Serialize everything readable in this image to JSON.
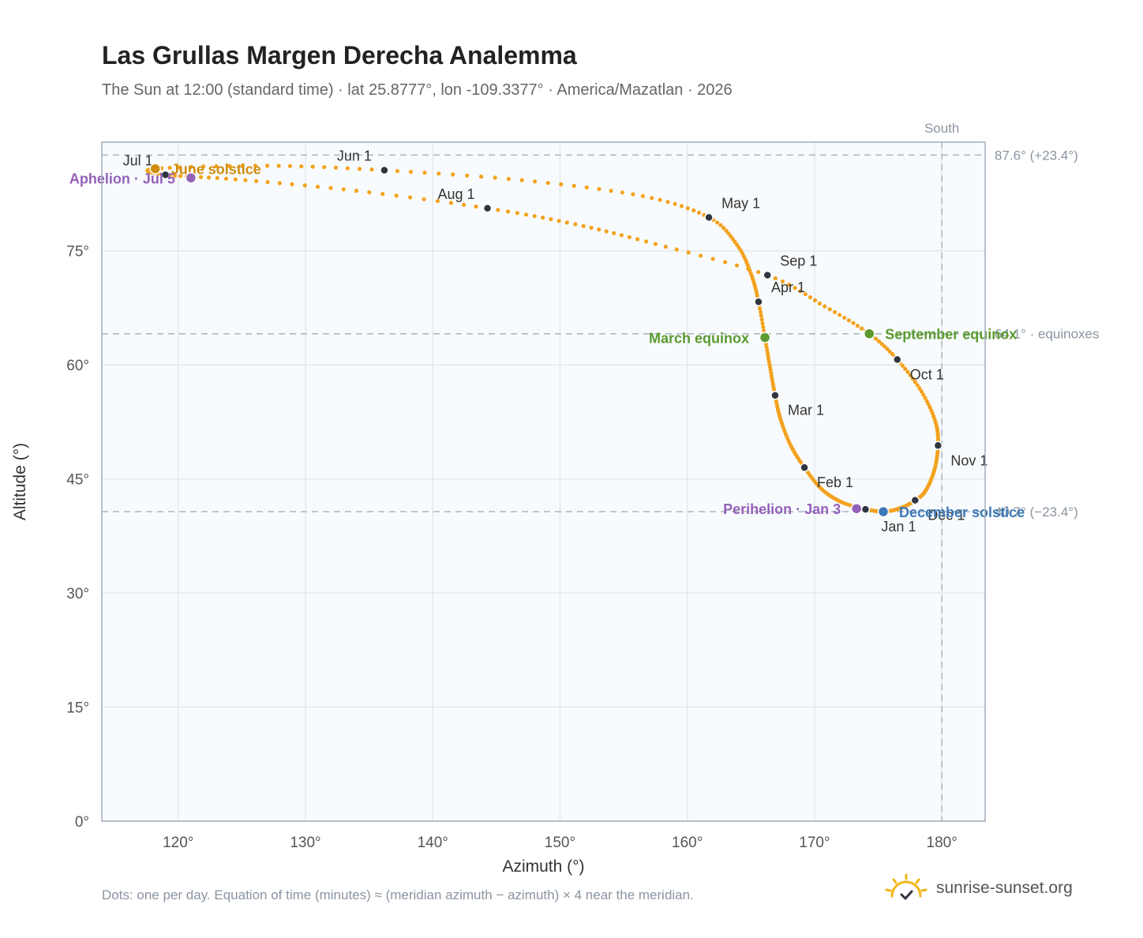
{
  "title": "Las Grullas Margen Derecha Analemma",
  "subtitle": "The Sun at 12:00 (standard time) · lat 25.8777°, lon -109.3377° · America/Mazatlan · 2026",
  "footnote": "Dots: one per day. Equation of time (minutes) ≈ (meridian azimuth − azimuth) × 4 near the meridian.",
  "brand": "sunrise-sunset.org",
  "colors": {
    "path": "#f3a21f",
    "month_marker": "#2f3640",
    "equinox": "#5a9a2f",
    "june_solstice": "#d08c0a",
    "december_solstice": "#3d7ab8",
    "apsis": "#9461b8",
    "reference_line": "#aab4bf",
    "grid": "#e4e8ec",
    "plot_bg": "#f8fbfd",
    "frame": "#a3adba"
  },
  "chart_data": {
    "type": "scatter",
    "xlabel": "Azimuth (°)",
    "ylabel": "Altitude (°)",
    "xlim": [
      114,
      183.4
    ],
    "ylim": [
      0,
      89.3
    ],
    "x_ticks": [
      120,
      130,
      140,
      150,
      160,
      170,
      180
    ],
    "x_tick_labels": [
      "120°",
      "130°",
      "140°",
      "150°",
      "160°",
      "170°",
      "180°"
    ],
    "y_ticks": [
      0,
      15,
      30,
      45,
      60,
      75
    ],
    "y_tick_labels": [
      "0°",
      "15°",
      "30°",
      "45°",
      "60°",
      "75°"
    ],
    "grid": true,
    "meridian": {
      "azimuth": 180,
      "label": "South"
    },
    "reference_lines": [
      {
        "altitude": 87.6,
        "label": "87.6° (+23.4°)"
      },
      {
        "altitude": 64.1,
        "label": "64.1° · equinoxes"
      },
      {
        "altitude": 40.7,
        "label": "40.7° (−23.4°)"
      }
    ],
    "path_points": [
      {
        "date": "Jan 1",
        "azimuth": 174.0,
        "altitude": 41.0
      },
      {
        "date": "Jan 10",
        "azimuth": 172.2,
        "altitude": 41.9
      },
      {
        "date": "Jan 20",
        "azimuth": 170.6,
        "altitude": 43.6
      },
      {
        "date": "Feb 1",
        "azimuth": 169.2,
        "altitude": 46.5
      },
      {
        "date": "Feb 11",
        "azimuth": 168.1,
        "altitude": 49.5
      },
      {
        "date": "Feb 21",
        "azimuth": 167.3,
        "altitude": 53.0
      },
      {
        "date": "Mar 1",
        "azimuth": 166.9,
        "altitude": 56.0
      },
      {
        "date": "Mar 10",
        "azimuth": 166.5,
        "altitude": 59.7
      },
      {
        "date": "Mar 20",
        "azimuth": 166.1,
        "altitude": 63.6
      },
      {
        "date": "Apr 1",
        "azimuth": 165.6,
        "altitude": 68.3
      },
      {
        "date": "Apr 10",
        "azimuth": 165.0,
        "altitude": 72.0
      },
      {
        "date": "Apr 20",
        "azimuth": 163.9,
        "altitude": 75.8
      },
      {
        "date": "May 1",
        "azimuth": 161.7,
        "altitude": 79.4
      },
      {
        "date": "May 11",
        "azimuth": 156.5,
        "altitude": 82.2
      },
      {
        "date": "May 21",
        "azimuth": 147.0,
        "altitude": 84.3
      },
      {
        "date": "Jun 1",
        "azimuth": 136.2,
        "altitude": 85.6
      },
      {
        "date": "Jun 11",
        "azimuth": 127.0,
        "altitude": 86.2
      },
      {
        "date": "Jun 21",
        "azimuth": 118.2,
        "altitude": 85.8
      },
      {
        "date": "Jul 1",
        "azimuth": 119.0,
        "altitude": 85.0
      },
      {
        "date": "Jul 11",
        "azimuth": 124.5,
        "altitude": 84.4
      },
      {
        "date": "Jul 21",
        "azimuth": 134.0,
        "altitude": 82.9
      },
      {
        "date": "Aug 1",
        "azimuth": 144.3,
        "altitude": 80.6
      },
      {
        "date": "Aug 11",
        "azimuth": 151.2,
        "altitude": 78.5
      },
      {
        "date": "Aug 21",
        "azimuth": 157.5,
        "altitude": 75.9
      },
      {
        "date": "Sep 1",
        "azimuth": 166.3,
        "altitude": 71.8
      },
      {
        "date": "Sep 11",
        "azimuth": 170.8,
        "altitude": 67.7
      },
      {
        "date": "Sep 22",
        "azimuth": 174.3,
        "altitude": 64.1
      },
      {
        "date": "Oct 1",
        "azimuth": 176.5,
        "altitude": 60.7
      },
      {
        "date": "Oct 11",
        "azimuth": 178.4,
        "altitude": 56.5
      },
      {
        "date": "Oct 21",
        "azimuth": 179.5,
        "altitude": 52.5
      },
      {
        "date": "Nov 1",
        "azimuth": 179.7,
        "altitude": 49.4
      },
      {
        "date": "Nov 11",
        "azimuth": 179.4,
        "altitude": 46.1
      },
      {
        "date": "Nov 21",
        "azimuth": 178.7,
        "altitude": 43.4
      },
      {
        "date": "Dec 1",
        "azimuth": 177.9,
        "altitude": 42.2
      },
      {
        "date": "Dec 11",
        "azimuth": 176.8,
        "altitude": 41.2
      },
      {
        "date": "Dec 21",
        "azimuth": 175.4,
        "altitude": 40.7
      },
      {
        "date": "Dec 31",
        "azimuth": 174.1,
        "altitude": 41.0
      }
    ],
    "month_markers": [
      {
        "label": "Jan 1",
        "azimuth": 174.0,
        "altitude": 41.0,
        "anchor": "bottom-right"
      },
      {
        "label": "Feb 1",
        "azimuth": 169.2,
        "altitude": 46.5,
        "anchor": "right-below"
      },
      {
        "label": "Mar 1",
        "azimuth": 166.9,
        "altitude": 56.0,
        "anchor": "right-below"
      },
      {
        "label": "Apr 1",
        "azimuth": 165.6,
        "altitude": 68.3,
        "anchor": "right-above"
      },
      {
        "label": "May 1",
        "azimuth": 161.7,
        "altitude": 79.4,
        "anchor": "right-above"
      },
      {
        "label": "Jun 1",
        "azimuth": 136.2,
        "altitude": 85.6,
        "anchor": "left-above"
      },
      {
        "label": "Jul 1",
        "azimuth": 119.0,
        "altitude": 85.0,
        "anchor": "left-above"
      },
      {
        "label": "Aug 1",
        "azimuth": 144.3,
        "altitude": 80.6,
        "anchor": "left-above"
      },
      {
        "label": "Sep 1",
        "azimuth": 166.3,
        "altitude": 71.8,
        "anchor": "right-above"
      },
      {
        "label": "Oct 1",
        "azimuth": 176.5,
        "altitude": 60.7,
        "anchor": "right-below"
      },
      {
        "label": "Nov 1",
        "azimuth": 179.7,
        "altitude": 49.4,
        "anchor": "right-below"
      },
      {
        "label": "Dec 1",
        "azimuth": 177.9,
        "altitude": 42.2,
        "anchor": "right-below"
      }
    ],
    "events": [
      {
        "label": "March equinox",
        "azimuth": 166.1,
        "altitude": 63.6,
        "color": "#5a9a2f",
        "side": "left"
      },
      {
        "label": "September equinox",
        "azimuth": 174.3,
        "altitude": 64.1,
        "color": "#5a9a2f",
        "side": "right"
      },
      {
        "label": "June solstice",
        "azimuth": 118.2,
        "altitude": 85.8,
        "color": "#d08c0a",
        "side": "right"
      },
      {
        "label": "December solstice",
        "azimuth": 175.4,
        "altitude": 40.7,
        "color": "#3d7ab8",
        "side": "right"
      },
      {
        "label": "Perihelion · Jan 3",
        "azimuth": 173.3,
        "altitude": 41.1,
        "color": "#9461b8",
        "side": "left"
      },
      {
        "label": "Aphelion · Jul 5",
        "azimuth": 121.0,
        "altitude": 84.6,
        "color": "#9461b8",
        "side": "left"
      }
    ]
  }
}
